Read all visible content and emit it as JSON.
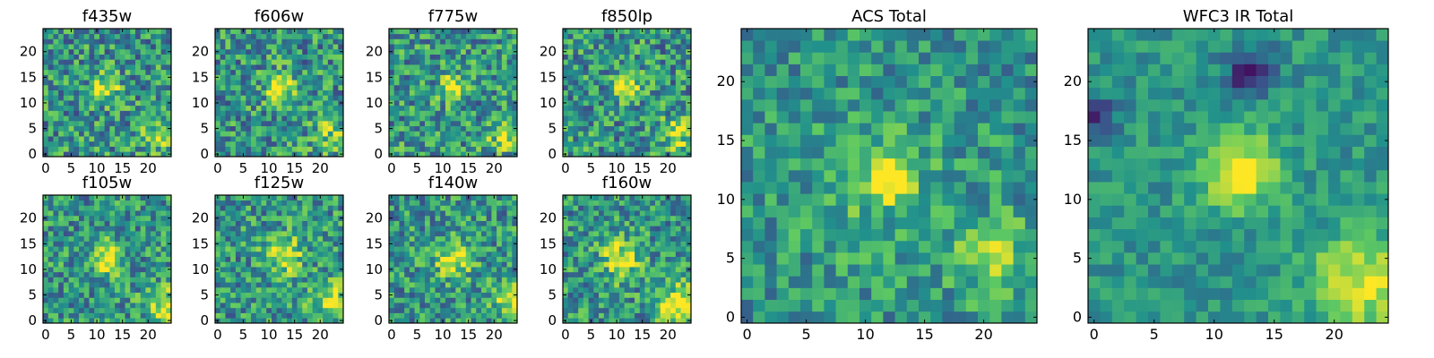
{
  "colormap": {
    "name": "viridis",
    "stops": [
      "#440154",
      "#3b528b",
      "#21918c",
      "#5ec962",
      "#fde725"
    ],
    "frame_color": "#000000",
    "background": "#ffffff"
  },
  "chart_data": [
    {
      "type": "heatmap",
      "title": "f435w",
      "grid_size": [
        25,
        25
      ],
      "xlim": [
        0,
        24
      ],
      "ylim": [
        0,
        24
      ],
      "xticks": [
        0,
        5,
        10,
        15,
        20
      ],
      "yticks": [
        0,
        5,
        10,
        15,
        20
      ],
      "origin": "lower",
      "colorscale": "viridis",
      "features": [
        {
          "kind": "noise",
          "amplitude": 0.3
        },
        {
          "kind": "blob",
          "x": 12,
          "y": 13,
          "sigma": 1.8,
          "amplitude": 0.45
        },
        {
          "kind": "blob",
          "x": 22,
          "y": 4,
          "sigma": 2.5,
          "amplitude": 0.25
        }
      ]
    },
    {
      "type": "heatmap",
      "title": "f606w",
      "grid_size": [
        25,
        25
      ],
      "xlim": [
        0,
        24
      ],
      "ylim": [
        0,
        24
      ],
      "xticks": [
        0,
        5,
        10,
        15,
        20
      ],
      "yticks": [
        0,
        5,
        10,
        15,
        20
      ],
      "origin": "lower",
      "colorscale": "viridis",
      "features": [
        {
          "kind": "noise",
          "amplitude": 0.3
        },
        {
          "kind": "blob",
          "x": 12,
          "y": 13,
          "sigma": 1.8,
          "amplitude": 0.55
        },
        {
          "kind": "blob",
          "x": 22,
          "y": 4,
          "sigma": 2.5,
          "amplitude": 0.25
        }
      ]
    },
    {
      "type": "heatmap",
      "title": "f775w",
      "grid_size": [
        25,
        25
      ],
      "xlim": [
        0,
        24
      ],
      "ylim": [
        0,
        24
      ],
      "xticks": [
        0,
        5,
        10,
        15,
        20
      ],
      "yticks": [
        0,
        5,
        10,
        15,
        20
      ],
      "origin": "lower",
      "colorscale": "viridis",
      "features": [
        {
          "kind": "noise",
          "amplitude": 0.3
        },
        {
          "kind": "blob",
          "x": 12,
          "y": 13,
          "sigma": 1.8,
          "amplitude": 0.5
        },
        {
          "kind": "blob",
          "x": 22,
          "y": 4,
          "sigma": 2.5,
          "amplitude": 0.3
        }
      ]
    },
    {
      "type": "heatmap",
      "title": "f850lp",
      "grid_size": [
        25,
        25
      ],
      "xlim": [
        0,
        24
      ],
      "ylim": [
        0,
        24
      ],
      "xticks": [
        0,
        5,
        10,
        15,
        20
      ],
      "yticks": [
        0,
        5,
        10,
        15,
        20
      ],
      "origin": "lower",
      "colorscale": "viridis",
      "features": [
        {
          "kind": "noise",
          "amplitude": 0.3
        },
        {
          "kind": "blob",
          "x": 12,
          "y": 13,
          "sigma": 1.8,
          "amplitude": 0.5
        },
        {
          "kind": "blob",
          "x": 22,
          "y": 4,
          "sigma": 2.5,
          "amplitude": 0.3
        }
      ]
    },
    {
      "type": "heatmap",
      "title": "f105w",
      "grid_size": [
        25,
        25
      ],
      "xlim": [
        0,
        24
      ],
      "ylim": [
        0,
        24
      ],
      "xticks": [
        0,
        5,
        10,
        15,
        20
      ],
      "yticks": [
        0,
        5,
        10,
        15,
        20
      ],
      "origin": "lower",
      "colorscale": "viridis",
      "features": [
        {
          "kind": "noise",
          "amplitude": 0.28
        },
        {
          "kind": "blob",
          "x": 12,
          "y": 12,
          "sigma": 2.0,
          "amplitude": 0.55
        },
        {
          "kind": "blob",
          "x": 23,
          "y": 3,
          "sigma": 2.5,
          "amplitude": 0.4
        }
      ]
    },
    {
      "type": "heatmap",
      "title": "f125w",
      "grid_size": [
        25,
        25
      ],
      "xlim": [
        0,
        24
      ],
      "ylim": [
        0,
        24
      ],
      "xticks": [
        0,
        5,
        10,
        15,
        20
      ],
      "yticks": [
        0,
        5,
        10,
        15,
        20
      ],
      "origin": "lower",
      "colorscale": "viridis",
      "features": [
        {
          "kind": "noise",
          "amplitude": 0.28
        },
        {
          "kind": "blob",
          "x": 13,
          "y": 13,
          "sigma": 2.8,
          "amplitude": 0.4
        },
        {
          "kind": "blob",
          "x": 22,
          "y": 4,
          "sigma": 2.5,
          "amplitude": 0.45
        }
      ]
    },
    {
      "type": "heatmap",
      "title": "f140w",
      "grid_size": [
        25,
        25
      ],
      "xlim": [
        0,
        24
      ],
      "ylim": [
        0,
        24
      ],
      "xticks": [
        0,
        5,
        10,
        15,
        20
      ],
      "yticks": [
        0,
        5,
        10,
        15,
        20
      ],
      "origin": "lower",
      "colorscale": "viridis",
      "features": [
        {
          "kind": "noise",
          "amplitude": 0.28
        },
        {
          "kind": "blob",
          "x": 12,
          "y": 12,
          "sigma": 2.5,
          "amplitude": 0.45
        },
        {
          "kind": "blob",
          "x": 23,
          "y": 4,
          "sigma": 2.5,
          "amplitude": 0.4
        }
      ]
    },
    {
      "type": "heatmap",
      "title": "f160w",
      "grid_size": [
        25,
        25
      ],
      "xlim": [
        0,
        24
      ],
      "ylim": [
        0,
        24
      ],
      "xticks": [
        0,
        5,
        10,
        15,
        20
      ],
      "yticks": [
        0,
        5,
        10,
        15,
        20
      ],
      "origin": "lower",
      "colorscale": "viridis",
      "features": [
        {
          "kind": "noise",
          "amplitude": 0.28
        },
        {
          "kind": "blob",
          "x": 11,
          "y": 12,
          "sigma": 2.6,
          "amplitude": 0.45
        },
        {
          "kind": "blob",
          "x": 22,
          "y": 3,
          "sigma": 2.8,
          "amplitude": 0.5
        }
      ]
    },
    {
      "type": "heatmap",
      "title": "ACS Total",
      "grid_size": [
        25,
        25
      ],
      "xlim": [
        0,
        24
      ],
      "ylim": [
        0,
        24
      ],
      "xticks": [
        0,
        5,
        10,
        15,
        20
      ],
      "yticks": [
        0,
        5,
        10,
        15,
        20
      ],
      "origin": "lower",
      "colorscale": "viridis",
      "features": [
        {
          "kind": "noise",
          "amplitude": 0.22
        },
        {
          "kind": "blob",
          "x": 12,
          "y": 12,
          "sigma": 1.4,
          "amplitude": 0.6
        },
        {
          "kind": "blob",
          "x": 21,
          "y": 5,
          "sigma": 2.2,
          "amplitude": 0.3
        },
        {
          "kind": "blob",
          "x": 11,
          "y": 11,
          "sigma": 4.5,
          "amplitude": 0.12
        }
      ]
    },
    {
      "type": "heatmap",
      "title": "WFC3 IR Total",
      "grid_size": [
        25,
        25
      ],
      "xlim": [
        0,
        24
      ],
      "ylim": [
        0,
        24
      ],
      "xticks": [
        0,
        5,
        10,
        15,
        20
      ],
      "yticks": [
        0,
        5,
        10,
        15,
        20
      ],
      "origin": "lower",
      "colorscale": "viridis",
      "features": [
        {
          "kind": "noise",
          "amplitude": 0.14
        },
        {
          "kind": "blob",
          "x": 12,
          "y": 12.5,
          "sigma": 2.2,
          "amplitude": 0.55
        },
        {
          "kind": "blob",
          "x": 22,
          "y": 3,
          "sigma": 2.8,
          "amplitude": 0.45
        },
        {
          "kind": "blob",
          "x": 13,
          "y": 21,
          "sigma": 1.3,
          "amplitude": -0.5
        },
        {
          "kind": "blob",
          "x": 0,
          "y": 17,
          "sigma": 1.2,
          "amplitude": -0.35
        }
      ]
    }
  ]
}
